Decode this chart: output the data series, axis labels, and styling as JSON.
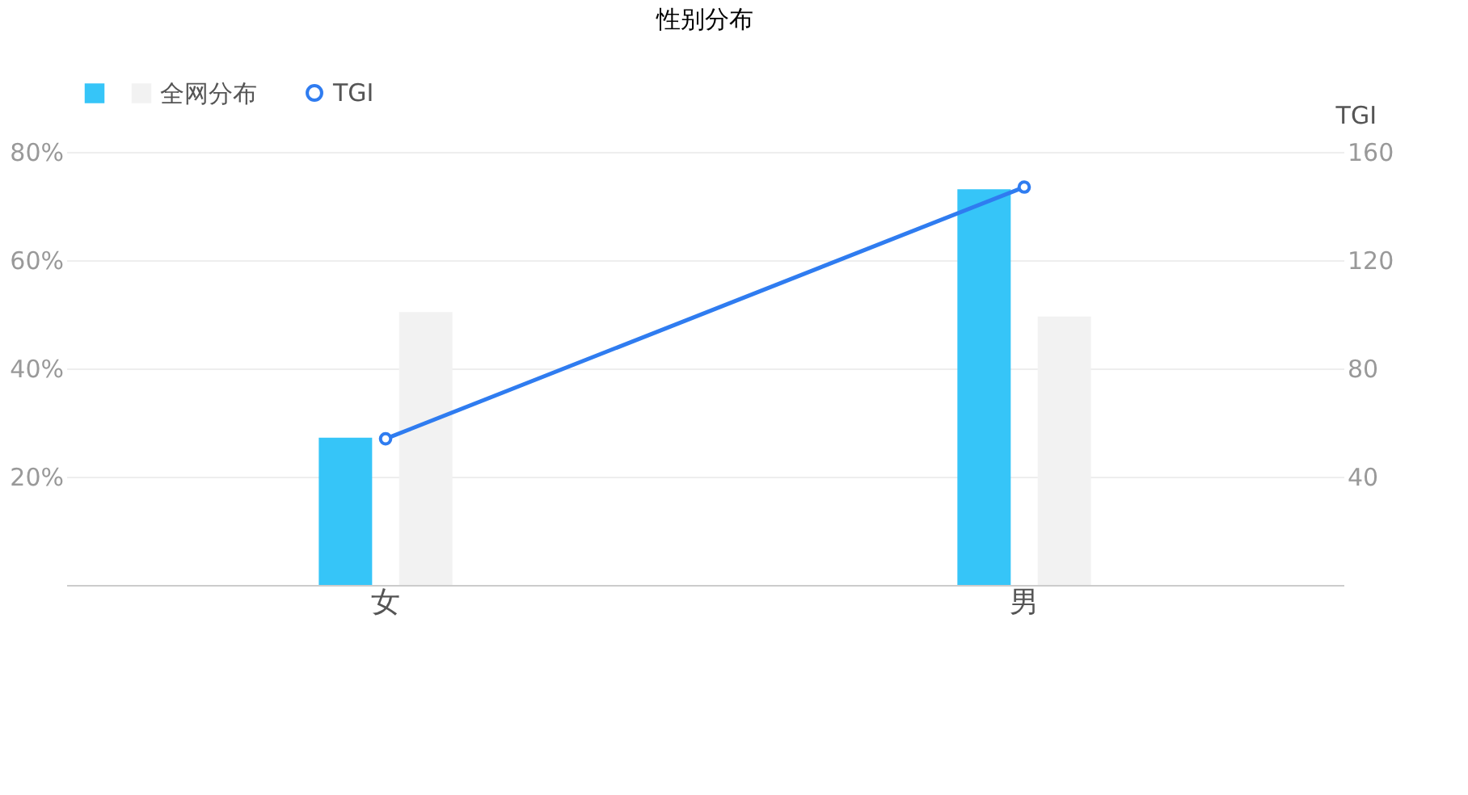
{
  "chart_data": {
    "type": "bar",
    "title": "性别分布",
    "y2label": "TGI",
    "categories": [
      "女",
      "男"
    ],
    "series": [
      {
        "color": "#36c5f8",
        "values": [
          27.2,
          73.1
        ]
      },
      {
        "name": "全网分布",
        "color": "#f2f2f2",
        "values": [
          50.4,
          49.6
        ]
      },
      {
        "name": "TGI",
        "type": "line",
        "axis": "y2",
        "color": "#2f7cf0",
        "values": [
          54,
          147
        ],
        "marker": "circle"
      }
    ],
    "ylim": [
      0,
      80
    ],
    "yticks": [
      {
        "value": 20,
        "label": "20%"
      },
      {
        "value": 40,
        "label": "40%"
      },
      {
        "value": 60,
        "label": "60%"
      },
      {
        "value": 80,
        "label": "80%"
      }
    ],
    "y2lim": [
      0,
      160
    ],
    "y2ticks": [
      40,
      80,
      120,
      160
    ],
    "grid": "y",
    "legend": "top left"
  }
}
